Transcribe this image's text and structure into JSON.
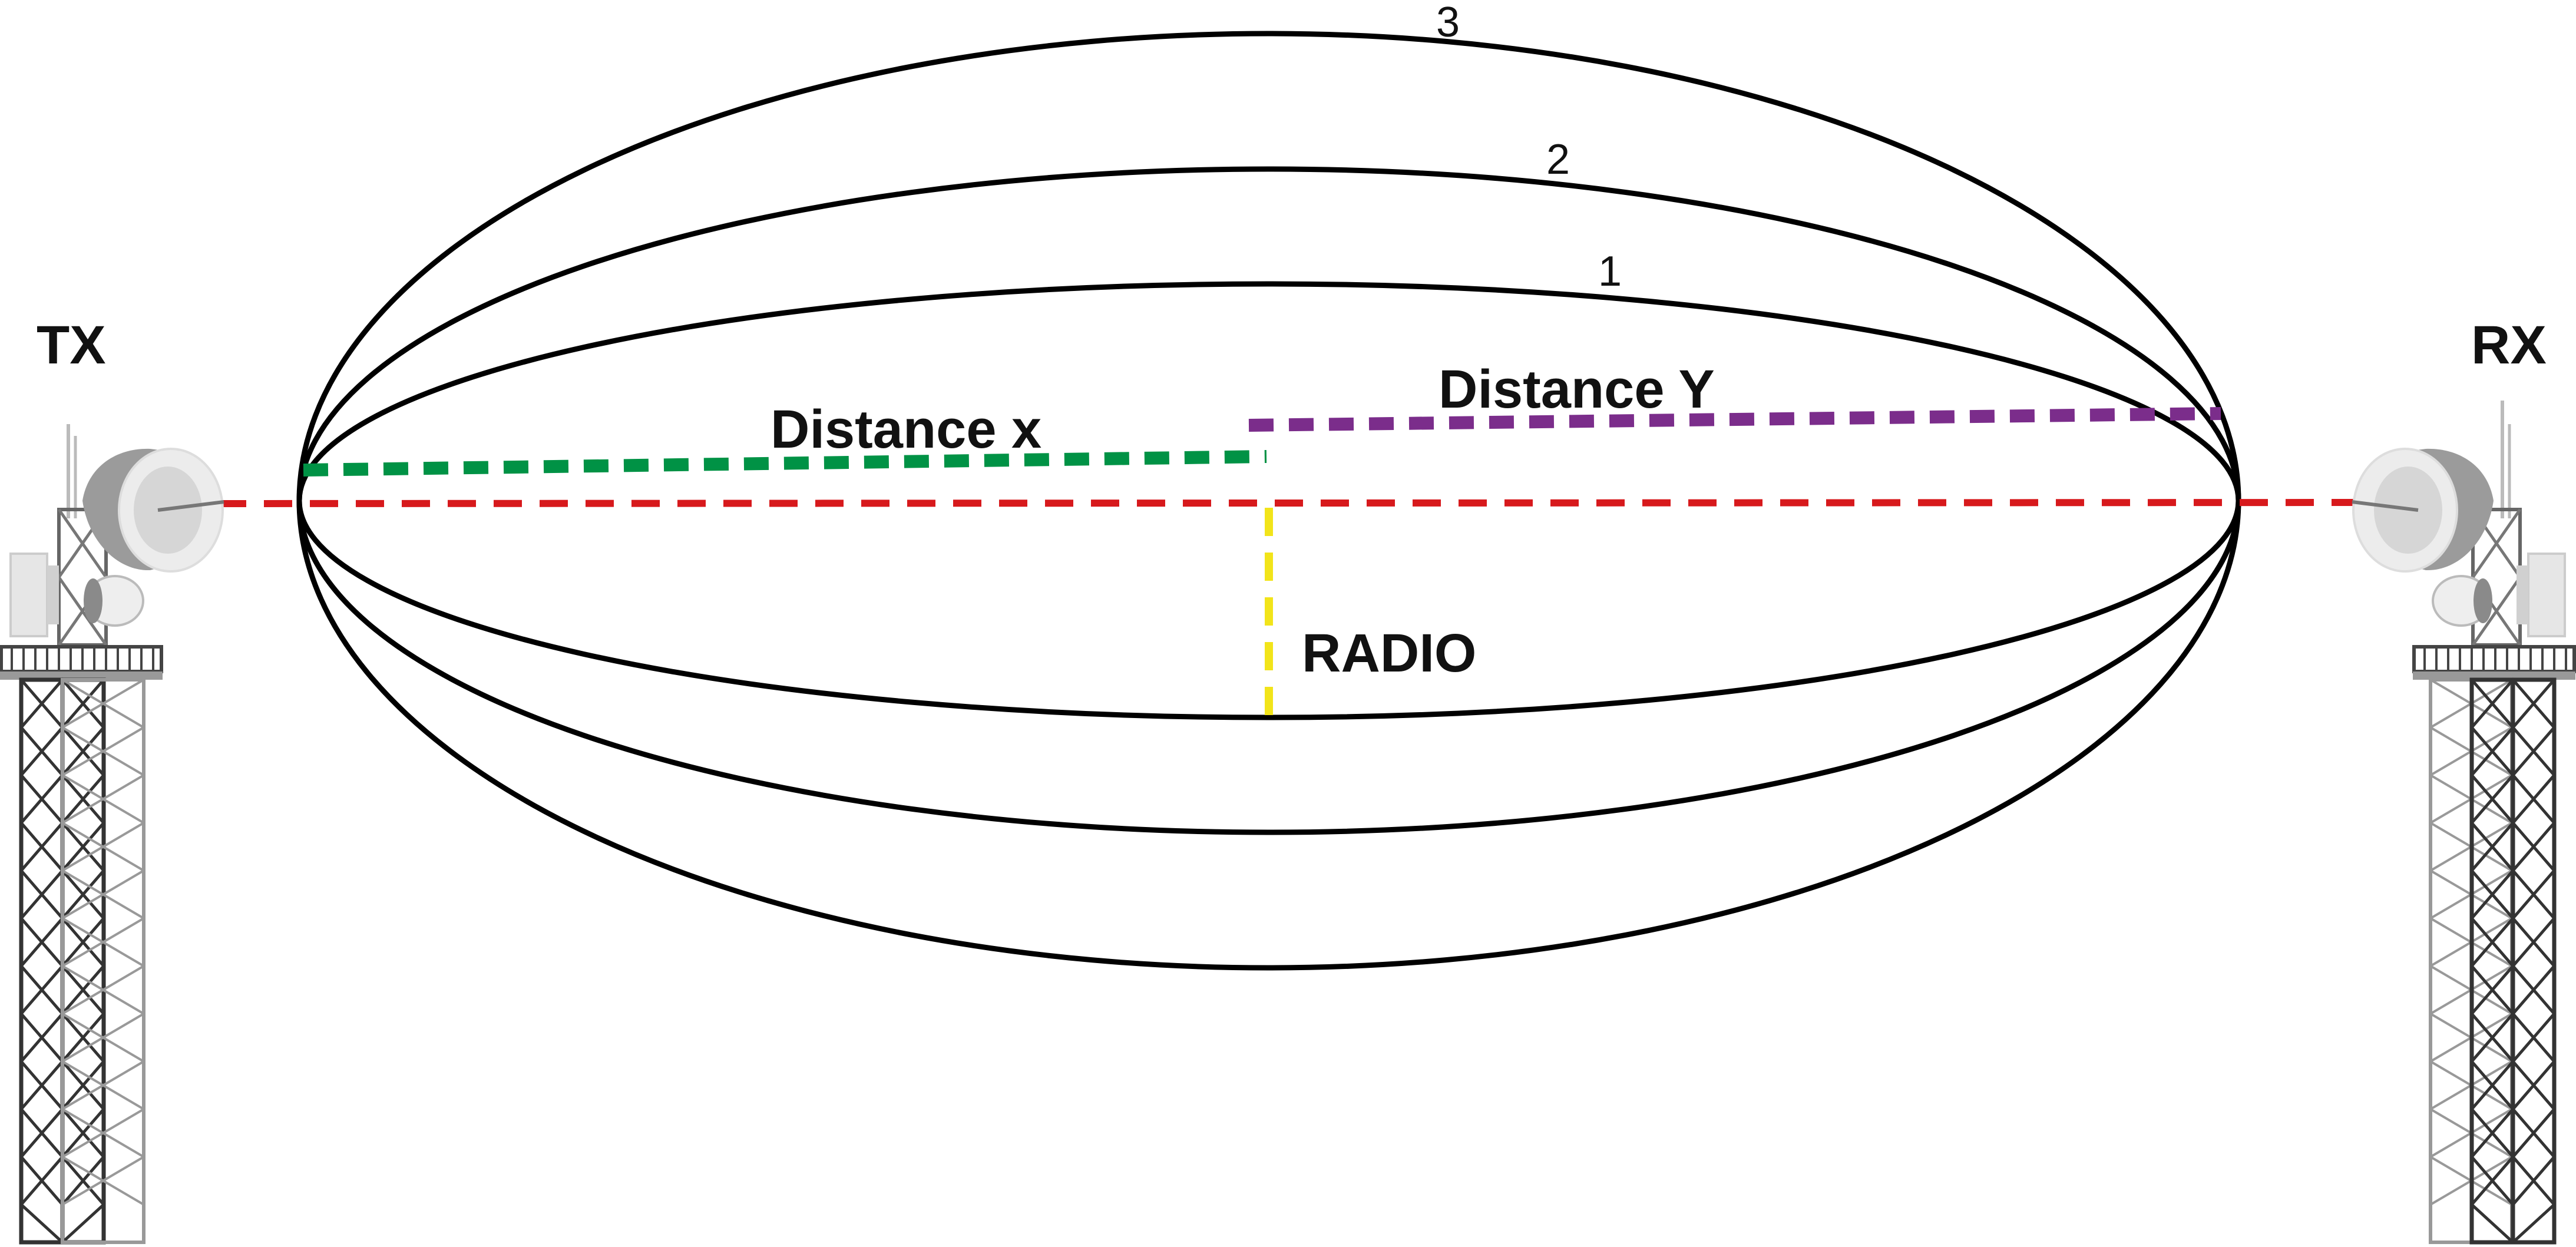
{
  "labels": {
    "tx": "TX",
    "rx": "RX",
    "zone_1": "1",
    "zone_2": "2",
    "zone_3": "3",
    "distance_x": "Distance x",
    "distance_y": "Distance Y",
    "radius": "RADIO"
  },
  "colors": {
    "ellipse_stroke": "#000000",
    "line_of_sight": "#d7191c",
    "distance_x": "#009245",
    "distance_y": "#7b2d8b",
    "radius": "#f2e41a",
    "tower": "#333333"
  },
  "icons": {
    "tx_tower": "lattice-tower-icon",
    "rx_tower": "lattice-tower-icon",
    "tx_dish": "dish-antenna-icon",
    "rx_dish": "dish-antenna-icon"
  }
}
